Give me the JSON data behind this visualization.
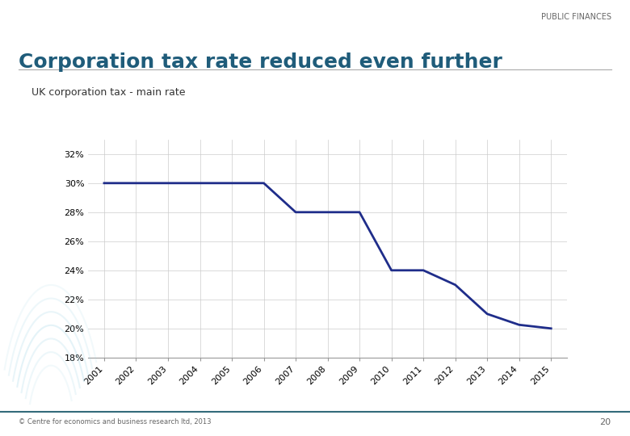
{
  "title": "Corporation tax rate reduced even further",
  "subtitle": "UK corporation tax - main rate",
  "header_label": "PUBLIC FINANCES",
  "footer_label": "© Centre for economics and business research ltd, 2013",
  "page_number": "20",
  "years": [
    2001,
    2002,
    2003,
    2004,
    2005,
    2006,
    2007,
    2008,
    2009,
    2010,
    2011,
    2012,
    2013,
    2014,
    2015
  ],
  "rates": [
    30,
    30,
    30,
    30,
    30,
    30,
    28,
    28,
    28,
    24,
    24,
    23,
    21,
    20.25,
    20
  ],
  "line_color": "#1F2D8A",
  "line_width": 2.0,
  "ylim": [
    18,
    33
  ],
  "yticks": [
    18,
    20,
    22,
    24,
    26,
    28,
    30,
    32
  ],
  "ytick_labels": [
    "18%",
    "20%",
    "22%",
    "24%",
    "26%",
    "28%",
    "30%",
    "32%"
  ],
  "background_color": "#FFFFFF",
  "plot_bg_color": "#FFFFFF",
  "grid_color": "#CCCCCC",
  "title_color": "#1F5C7A",
  "subtitle_color": "#333333",
  "header_color": "#666666"
}
